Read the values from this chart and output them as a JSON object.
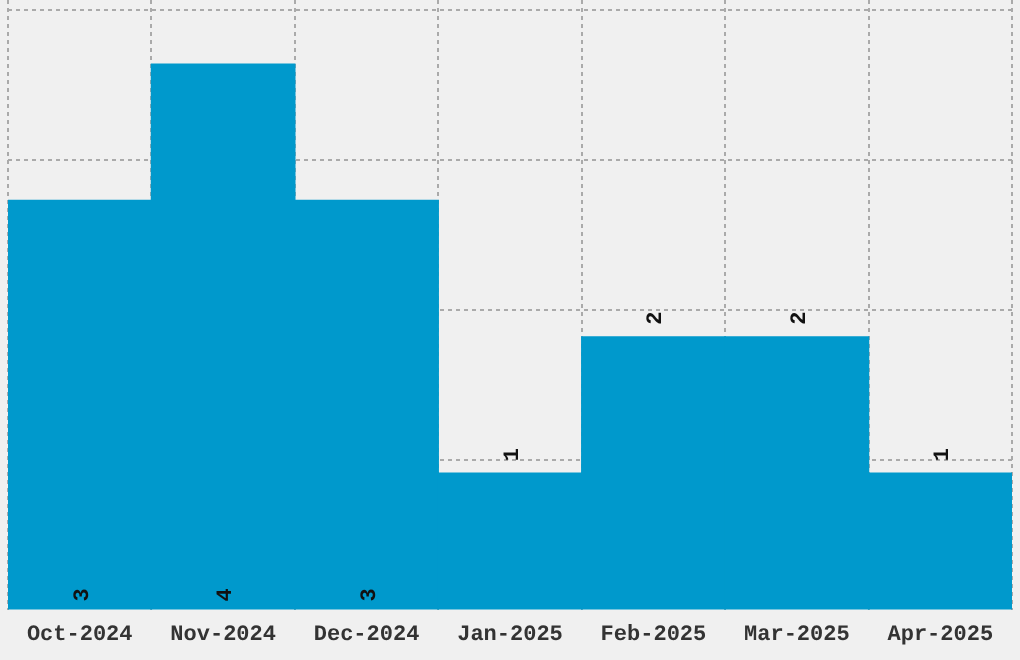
{
  "chart_data": {
    "type": "bar",
    "categories": [
      "Oct-2024",
      "Nov-2024",
      "Dec-2024",
      "Jan-2025",
      "Feb-2025",
      "Mar-2025",
      "Apr-2025"
    ],
    "values": [
      3,
      4,
      3,
      1,
      2,
      2,
      1
    ],
    "color": "#0099cc",
    "data_labels": true,
    "grid": true,
    "ylim": [
      0,
      4.47
    ],
    "yticks": [
      {
        "value": 1.1,
        "label": null
      },
      {
        "value": 2.2,
        "label": null
      },
      {
        "value": 3.3,
        "label": null
      },
      {
        "value": 4.4,
        "label": null
      }
    ],
    "tick_labels": "x"
  }
}
